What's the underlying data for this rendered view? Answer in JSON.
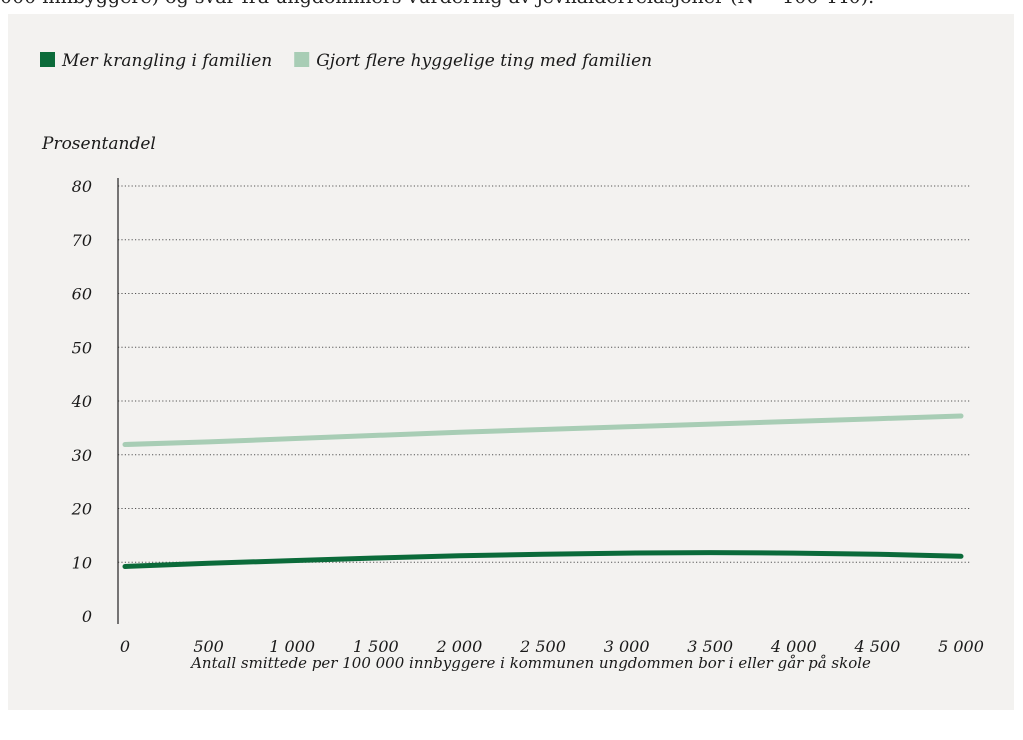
{
  "caption": "000 innbyggere) og svar fra ungdommers vurdering av jevnalderrelasjoner (N = 100 440).",
  "colors": {
    "series_dark": "#0b6b3a",
    "series_light": "#a8cdb5",
    "background": "#f3f2f0",
    "grid": "#555555"
  },
  "chart_data": {
    "type": "line",
    "ylabel": "Prosentandel",
    "xlabel": "Antall smittede per 100 000 innbyggere i kommunen ungdommen bor i eller går på skole",
    "ylim": [
      0,
      80
    ],
    "xlim": [
      0,
      5000
    ],
    "yticks": [
      0,
      10,
      20,
      30,
      40,
      50,
      60,
      70,
      80
    ],
    "yticklabels": [
      "0",
      "10",
      "20",
      "30",
      "40",
      "50",
      "60",
      "70",
      "80"
    ],
    "xticks": [
      0,
      500,
      1000,
      1500,
      2000,
      2500,
      3000,
      3500,
      4000,
      4500,
      5000
    ],
    "xticklabels": [
      "0",
      "500",
      "1 000",
      "1 500",
      "2 000",
      "2 500",
      "3 000",
      "3 500",
      "4 000",
      "4 500",
      "5 000"
    ],
    "grid": "horizontal dotted",
    "legend_position": "top-left",
    "series": [
      {
        "name": "Mer krangling i familien",
        "color": "#0b6b3a",
        "x": [
          0,
          500,
          1000,
          1500,
          2000,
          2500,
          3000,
          3500,
          4000,
          4500,
          5000
        ],
        "y": [
          9.2,
          9.8,
          10.3,
          10.8,
          11.2,
          11.5,
          11.7,
          11.8,
          11.7,
          11.5,
          11.1
        ]
      },
      {
        "name": "Gjort flere hyggelige ting med familien",
        "color": "#a8cdb5",
        "x": [
          0,
          500,
          1000,
          1500,
          2000,
          2500,
          3000,
          3500,
          4000,
          4500,
          5000
        ],
        "y": [
          31.9,
          32.4,
          33.0,
          33.6,
          34.2,
          34.7,
          35.2,
          35.7,
          36.2,
          36.7,
          37.2
        ]
      }
    ]
  }
}
